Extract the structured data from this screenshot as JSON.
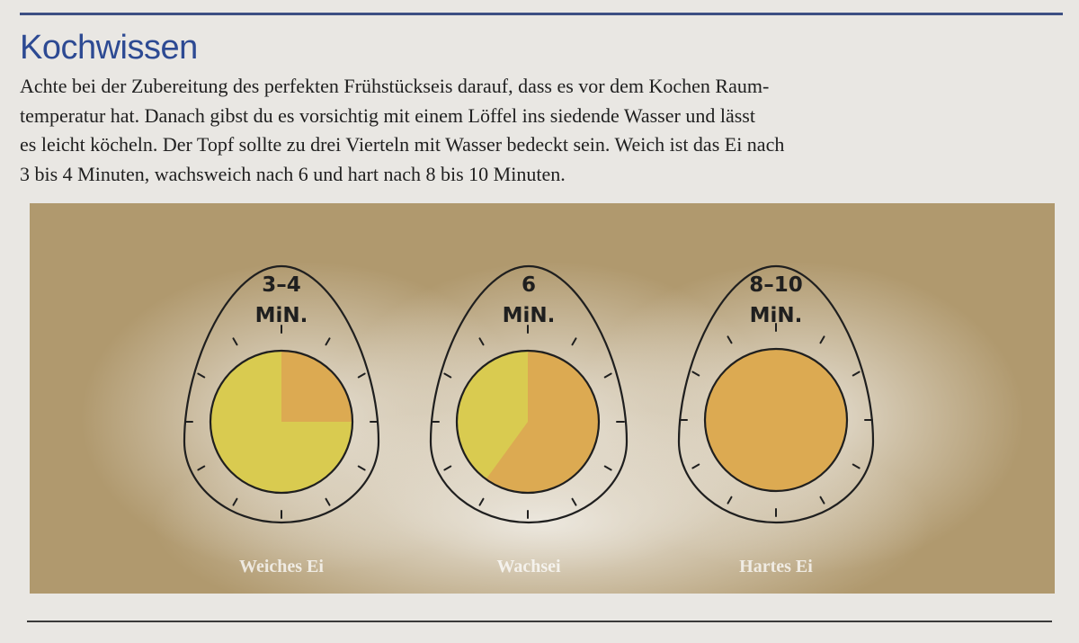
{
  "article": {
    "title": "Kochwissen",
    "paragraph_lines": [
      "Achte bei der Zubereitung des perfekten Frühstückseis darauf, dass es vor dem Kochen Raum-",
      "temperatur hat. Danach gibst du es vorsichtig mit einem Löffel ins siedende Wasser und lässt",
      "es leicht köcheln. Der Topf sollte zu drei Vierteln mit Wasser bedeckt sein. Weich ist das Ei nach",
      "3 bis 4 Minuten, wachsweich nach 6 und hart nach 8 bis 10 Minuten."
    ]
  },
  "illustration": {
    "eggs": [
      {
        "time": "3–4",
        "unit": "MiN.",
        "label": "Weiches Ei",
        "yolk_colors": [
          "#d9cb50",
          "#dcaa52"
        ],
        "hard_fraction": 0.25
      },
      {
        "time": "6",
        "unit": "MiN.",
        "label": "Wachsei",
        "yolk_colors": [
          "#d9cb50",
          "#dcaa52"
        ],
        "hard_fraction": 0.6
      },
      {
        "time": "8–10",
        "unit": "MiN.",
        "label": "Hartes Ei",
        "yolk_colors": [
          "#dcaa52",
          "#dcaa52"
        ],
        "hard_fraction": 1.0
      }
    ]
  },
  "colors": {
    "title": "#2d4a93",
    "background": "#b0996e",
    "soft_yolk": "#d9cb50",
    "hard_yolk": "#dcaa52"
  }
}
